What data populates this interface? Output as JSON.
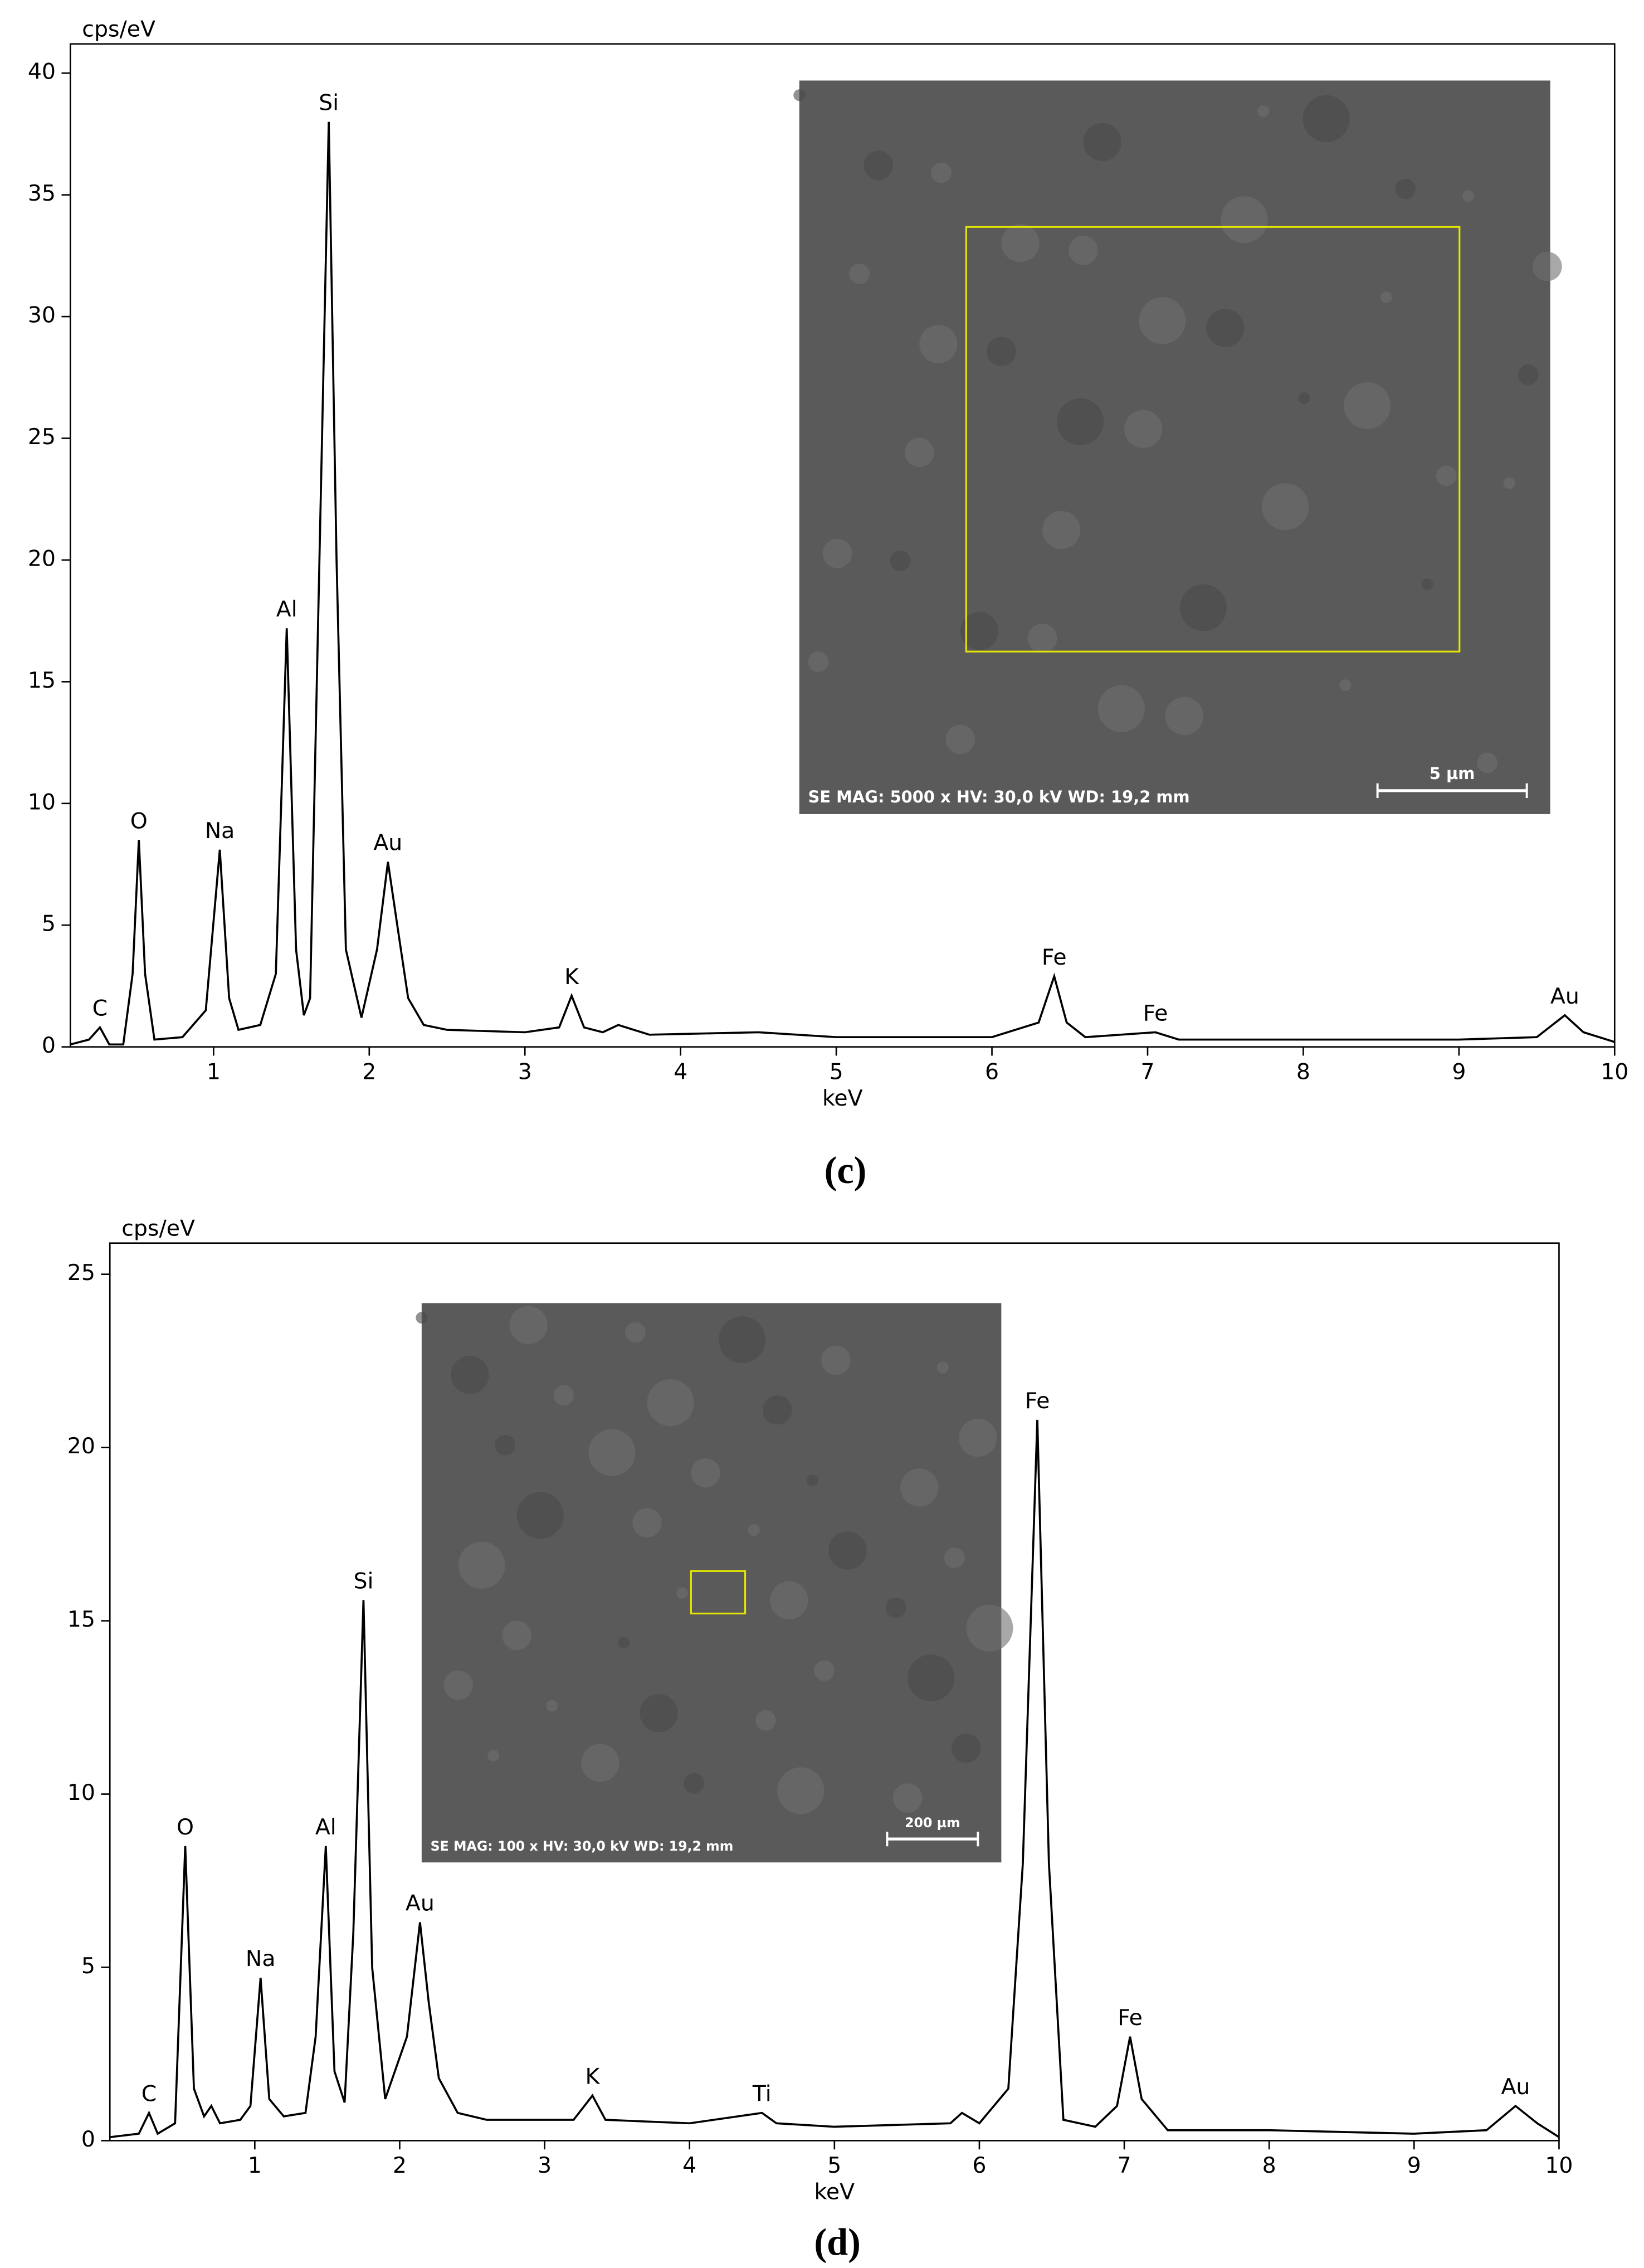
{
  "chart_data": [
    {
      "type": "line",
      "panel_label": "(c)",
      "ylabel": "cps/eV",
      "xlabel": "keV",
      "color": "#000000",
      "xlim": [
        0.08,
        10
      ],
      "ylim": [
        0,
        41.2
      ],
      "xticks": [
        1,
        2,
        3,
        4,
        5,
        6,
        7,
        8,
        9,
        10
      ],
      "yticks": [
        0,
        5,
        10,
        15,
        20,
        25,
        30,
        35,
        40
      ],
      "x": [
        0.08,
        0.2,
        0.27,
        0.33,
        0.42,
        0.48,
        0.52,
        0.56,
        0.62,
        0.8,
        0.95,
        1.04,
        1.1,
        1.16,
        1.3,
        1.4,
        1.47,
        1.53,
        1.58,
        1.62,
        1.68,
        1.74,
        1.79,
        1.85,
        1.95,
        2.05,
        2.12,
        2.18,
        2.25,
        2.35,
        2.5,
        3.0,
        3.22,
        3.3,
        3.38,
        3.5,
        3.6,
        3.8,
        4.5,
        5.0,
        6.0,
        6.3,
        6.4,
        6.48,
        6.6,
        7.05,
        7.2,
        8,
        9,
        9.5,
        9.68,
        9.8,
        10
      ],
      "values": [
        0.1,
        0.3,
        0.8,
        0.1,
        0.1,
        3,
        8.5,
        3,
        0.3,
        0.4,
        1.5,
        8.1,
        2,
        0.7,
        0.9,
        3,
        17.2,
        4,
        1.3,
        2,
        20,
        38,
        20,
        4,
        1.2,
        4,
        7.6,
        5,
        2,
        0.9,
        0.7,
        0.6,
        0.8,
        2.1,
        0.8,
        0.6,
        0.9,
        0.5,
        0.6,
        0.4,
        0.4,
        1,
        2.9,
        1,
        0.4,
        0.6,
        0.3,
        0.3,
        0.3,
        0.4,
        1.3,
        0.6,
        0.2
      ],
      "peaks": [
        {
          "label": "C",
          "x": 0.27,
          "y": 0.8
        },
        {
          "label": "O",
          "x": 0.52,
          "y": 8.5
        },
        {
          "label": "Na",
          "x": 1.04,
          "y": 8.1
        },
        {
          "label": "Al",
          "x": 1.47,
          "y": 17.2
        },
        {
          "label": "Si",
          "x": 1.74,
          "y": 38
        },
        {
          "label": "Au",
          "x": 2.12,
          "y": 7.6
        },
        {
          "label": "K",
          "x": 3.3,
          "y": 2.1
        },
        {
          "label": "Fe",
          "x": 6.4,
          "y": 2.9
        },
        {
          "label": "Fe",
          "x": 7.05,
          "y": 0.6
        },
        {
          "label": "Au",
          "x": 9.68,
          "y": 1.3
        }
      ],
      "inset_caption": "SE MAG: 5000 x HV: 30,0 kV WD: 19,2 mm",
      "inset_scale": "5 µm"
    },
    {
      "type": "line",
      "panel_label": "(d)",
      "ylabel": "cps/eV",
      "xlabel": "keV",
      "color": "#000000",
      "xlim": [
        0,
        10
      ],
      "ylim": [
        0,
        25.9
      ],
      "xticks": [
        1,
        2,
        3,
        4,
        5,
        6,
        7,
        8,
        9,
        10
      ],
      "yticks": [
        0,
        5,
        10,
        15,
        20,
        25
      ],
      "x": [
        0.0,
        0.2,
        0.27,
        0.33,
        0.45,
        0.52,
        0.58,
        0.65,
        0.7,
        0.76,
        0.9,
        0.97,
        1.04,
        1.1,
        1.2,
        1.35,
        1.42,
        1.49,
        1.55,
        1.62,
        1.68,
        1.75,
        1.81,
        1.9,
        2.05,
        2.14,
        2.2,
        2.27,
        2.4,
        2.6,
        3.2,
        3.33,
        3.42,
        4,
        4.5,
        4.6,
        5,
        5.8,
        5.88,
        6.0,
        6.2,
        6.3,
        6.4,
        6.48,
        6.58,
        6.8,
        6.95,
        7.04,
        7.12,
        7.3,
        8,
        9,
        9.5,
        9.7,
        9.85,
        10
      ],
      "values": [
        0.1,
        0.2,
        0.8,
        0.2,
        0.5,
        8.5,
        1.5,
        0.7,
        1.0,
        0.5,
        0.6,
        1.0,
        4.7,
        1.2,
        0.7,
        0.8,
        3,
        8.5,
        2,
        1.1,
        6,
        15.6,
        5,
        1.2,
        3,
        6.3,
        4,
        1.8,
        0.8,
        0.6,
        0.6,
        1.3,
        0.6,
        0.5,
        0.8,
        0.5,
        0.4,
        0.5,
        0.8,
        0.5,
        1.5,
        8,
        20.8,
        8,
        0.6,
        0.4,
        1,
        3,
        1.2,
        0.3,
        0.3,
        0.2,
        0.3,
        1.0,
        0.5,
        0.1
      ],
      "peaks": [
        {
          "label": "C",
          "x": 0.27,
          "y": 0.8
        },
        {
          "label": "O",
          "x": 0.52,
          "y": 8.5
        },
        {
          "label": "Na",
          "x": 1.04,
          "y": 4.7
        },
        {
          "label": "Al",
          "x": 1.49,
          "y": 8.5
        },
        {
          "label": "Si",
          "x": 1.75,
          "y": 15.6
        },
        {
          "label": "Au",
          "x": 2.14,
          "y": 6.3
        },
        {
          "label": "K",
          "x": 3.33,
          "y": 1.3
        },
        {
          "label": "Ti",
          "x": 4.5,
          "y": 0.8
        },
        {
          "label": "Fe",
          "x": 6.4,
          "y": 20.8
        },
        {
          "label": "Fe",
          "x": 7.04,
          "y": 3
        },
        {
          "label": "Au",
          "x": 9.7,
          "y": 1.0
        }
      ],
      "inset_caption": "SE MAG: 100 x HV: 30,0 kV WD: 19,2 mm",
      "inset_scale": "200 µm"
    }
  ]
}
